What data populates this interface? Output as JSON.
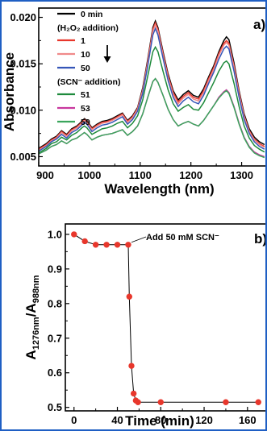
{
  "chart_data": [
    {
      "type": "line",
      "panel_label": "a)",
      "xlabel": "Wavelength (nm)",
      "ylabel": "Absorbance",
      "xlim": [
        900,
        1350
      ],
      "ylim": [
        0.004,
        0.021
      ],
      "x_ticks": [
        900,
        1000,
        1100,
        1200,
        1300
      ],
      "y_ticks": [
        0.005,
        0.01,
        0.015,
        0.02
      ],
      "y_tick_labels": [
        "0.005",
        "0.010",
        "0.015",
        "0.020"
      ],
      "legend_position": "top-left",
      "legend_groups": [
        {
          "header": "",
          "entries": [
            "0 min"
          ]
        },
        {
          "header": "(H₂O₂ addition)",
          "entries": [
            "1",
            "10",
            "50"
          ]
        },
        {
          "header": "(SCN⁻ addition)",
          "entries": [
            "51",
            "53",
            "59"
          ]
        }
      ],
      "x": [
        900,
        915,
        925,
        935,
        945,
        955,
        965,
        975,
        985,
        990,
        995,
        1005,
        1015,
        1025,
        1035,
        1045,
        1055,
        1065,
        1075,
        1085,
        1095,
        1105,
        1115,
        1125,
        1130,
        1135,
        1145,
        1155,
        1165,
        1175,
        1185,
        1195,
        1205,
        1215,
        1225,
        1235,
        1245,
        1255,
        1265,
        1270,
        1275,
        1285,
        1295,
        1305,
        1315,
        1325,
        1335,
        1345
      ],
      "series": [
        {
          "name": "0 min",
          "color": "#000000",
          "values": [
            0.0059,
            0.0064,
            0.0069,
            0.0072,
            0.0078,
            0.0074,
            0.008,
            0.0083,
            0.0088,
            0.0091,
            0.0089,
            0.0081,
            0.0085,
            0.0088,
            0.0089,
            0.0091,
            0.0094,
            0.0097,
            0.0089,
            0.0094,
            0.0103,
            0.0124,
            0.0155,
            0.0189,
            0.0196,
            0.0189,
            0.0163,
            0.0139,
            0.0121,
            0.0111,
            0.0117,
            0.0121,
            0.0116,
            0.0114,
            0.0123,
            0.0136,
            0.0148,
            0.0163,
            0.0175,
            0.0179,
            0.0176,
            0.0151,
            0.0121,
            0.0096,
            0.008,
            0.0071,
            0.0066,
            0.0063
          ]
        },
        {
          "name": "1",
          "color": "#e8372c",
          "values": [
            0.0058,
            0.0063,
            0.0068,
            0.0071,
            0.0077,
            0.0073,
            0.0079,
            0.0082,
            0.0087,
            0.009,
            0.0088,
            0.008,
            0.0084,
            0.0087,
            0.0088,
            0.009,
            0.0093,
            0.0096,
            0.0088,
            0.0093,
            0.0102,
            0.0122,
            0.0153,
            0.0187,
            0.0194,
            0.0187,
            0.0161,
            0.0137,
            0.0119,
            0.0109,
            0.0115,
            0.0119,
            0.0114,
            0.0112,
            0.0121,
            0.0134,
            0.0146,
            0.0161,
            0.0172,
            0.0175,
            0.0172,
            0.0148,
            0.0119,
            0.0094,
            0.0078,
            0.0069,
            0.0064,
            0.0061
          ]
        },
        {
          "name": "10",
          "color": "#f08a8a",
          "values": [
            0.0057,
            0.0062,
            0.0067,
            0.007,
            0.0076,
            0.0072,
            0.0078,
            0.0081,
            0.0086,
            0.0089,
            0.0087,
            0.0079,
            0.0083,
            0.0086,
            0.0087,
            0.0089,
            0.0092,
            0.0095,
            0.0087,
            0.0092,
            0.0101,
            0.0121,
            0.0151,
            0.0185,
            0.0192,
            0.0185,
            0.0159,
            0.0135,
            0.0117,
            0.0107,
            0.0113,
            0.0117,
            0.0112,
            0.011,
            0.0119,
            0.0132,
            0.0144,
            0.0159,
            0.017,
            0.0173,
            0.017,
            0.0146,
            0.0117,
            0.0093,
            0.0077,
            0.0068,
            0.0063,
            0.006
          ]
        },
        {
          "name": "50",
          "color": "#3556b8",
          "values": [
            0.0056,
            0.0061,
            0.0066,
            0.0069,
            0.0074,
            0.007,
            0.0076,
            0.0079,
            0.0084,
            0.0087,
            0.0085,
            0.0077,
            0.0081,
            0.0084,
            0.0085,
            0.0087,
            0.009,
            0.0093,
            0.0085,
            0.009,
            0.0099,
            0.0118,
            0.0148,
            0.0181,
            0.0188,
            0.0181,
            0.0156,
            0.0132,
            0.0114,
            0.0104,
            0.011,
            0.0114,
            0.0109,
            0.0107,
            0.0116,
            0.0129,
            0.0141,
            0.0155,
            0.0166,
            0.0169,
            0.0166,
            0.0142,
            0.0114,
            0.009,
            0.0075,
            0.0066,
            0.0061,
            0.0058
          ]
        },
        {
          "name": "51",
          "color": "#1e8a3c",
          "values": [
            0.0054,
            0.0059,
            0.0064,
            0.0066,
            0.0071,
            0.0068,
            0.0073,
            0.0076,
            0.0081,
            0.0083,
            0.0081,
            0.0074,
            0.0077,
            0.008,
            0.0081,
            0.0083,
            0.0086,
            0.0088,
            0.0081,
            0.0086,
            0.0094,
            0.0111,
            0.0137,
            0.0163,
            0.0168,
            0.0163,
            0.0142,
            0.0122,
            0.0107,
            0.0099,
            0.0103,
            0.0106,
            0.0101,
            0.01,
            0.0108,
            0.0119,
            0.013,
            0.0142,
            0.0151,
            0.0153,
            0.015,
            0.0129,
            0.0104,
            0.0083,
            0.007,
            0.0062,
            0.0058,
            0.0055
          ]
        },
        {
          "name": "53",
          "color": "#c8389e",
          "values": [
            0.0053,
            0.0057,
            0.0061,
            0.0063,
            0.0067,
            0.0064,
            0.0068,
            0.007,
            0.0074,
            0.0076,
            0.0074,
            0.0068,
            0.0071,
            0.0073,
            0.0074,
            0.0075,
            0.0077,
            0.0079,
            0.0073,
            0.0077,
            0.0083,
            0.0096,
            0.0114,
            0.0131,
            0.0134,
            0.013,
            0.0116,
            0.0101,
            0.009,
            0.0083,
            0.0086,
            0.0088,
            0.0085,
            0.0083,
            0.0089,
            0.0097,
            0.0105,
            0.0114,
            0.012,
            0.0122,
            0.0119,
            0.0104,
            0.0086,
            0.0071,
            0.0061,
            0.0055,
            0.0052,
            0.005
          ]
        },
        {
          "name": "59",
          "color": "#3aa55c",
          "values": [
            0.0053,
            0.0057,
            0.0061,
            0.0063,
            0.0067,
            0.0064,
            0.0068,
            0.007,
            0.0074,
            0.0076,
            0.0074,
            0.0068,
            0.0071,
            0.0073,
            0.0074,
            0.0075,
            0.0077,
            0.0079,
            0.0073,
            0.0077,
            0.0083,
            0.0096,
            0.0114,
            0.0131,
            0.0134,
            0.013,
            0.0116,
            0.0101,
            0.009,
            0.0083,
            0.0086,
            0.0088,
            0.0085,
            0.0083,
            0.0089,
            0.0097,
            0.0105,
            0.0113,
            0.0119,
            0.0121,
            0.0118,
            0.0103,
            0.0085,
            0.007,
            0.006,
            0.0054,
            0.0051,
            0.0049
          ]
        }
      ]
    },
    {
      "type": "scatter",
      "panel_label": "b)",
      "xlabel": "Time (min)",
      "ylabel_main": "A",
      "ylabel_sub1": "1276nm",
      "ylabel_mid": "/A",
      "ylabel_sub2": "988nm",
      "xlim": [
        -8,
        178
      ],
      "ylim": [
        0.49,
        1.03
      ],
      "x_ticks": [
        0,
        40,
        80,
        120,
        160
      ],
      "y_ticks": [
        0.5,
        0.6,
        0.7,
        0.8,
        0.9,
        1.0
      ],
      "y_tick_labels": [
        "0.5",
        "0.6",
        "0.7",
        "0.8",
        "0.9",
        "1.0"
      ],
      "annotation": "Add 50 mM SCN⁻",
      "annotation_x": 50,
      "marker_color": "#e8372c",
      "line_color": "#000000",
      "x": [
        0,
        10,
        20,
        30,
        40,
        50,
        51,
        53,
        55,
        57,
        59,
        80,
        140,
        170
      ],
      "y": [
        1.0,
        0.98,
        0.97,
        0.97,
        0.97,
        0.97,
        0.82,
        0.62,
        0.54,
        0.52,
        0.515,
        0.515,
        0.515,
        0.515
      ]
    }
  ]
}
